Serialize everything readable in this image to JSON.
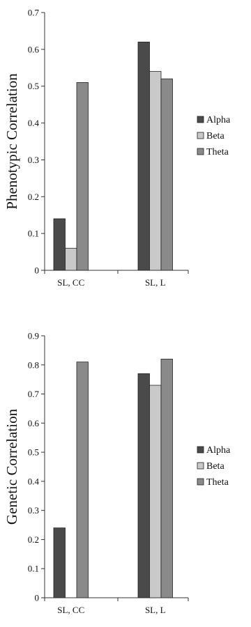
{
  "colors": {
    "Alpha": "#4a4a4a",
    "Beta": "#c9c9c9",
    "Theta": "#8a8a8a"
  },
  "chart_data": [
    {
      "type": "bar",
      "ylabel": "Phenotypic Correlation",
      "xlabel": "",
      "categories": [
        "SL, CC",
        "SL, L"
      ],
      "series": [
        {
          "name": "Alpha",
          "values": [
            0.14,
            0.62
          ]
        },
        {
          "name": "Beta",
          "values": [
            0.06,
            0.54
          ]
        },
        {
          "name": "Theta",
          "values": [
            0.51,
            0.52
          ]
        }
      ],
      "ylim": [
        0,
        0.7
      ],
      "yticks": [
        "0",
        "0.1",
        "0.2",
        "0.3",
        "0.4",
        "0.5",
        "0.6",
        "0.7"
      ],
      "grid": false,
      "legend": "right"
    },
    {
      "type": "bar",
      "ylabel": "Genetic Correlation",
      "xlabel": "",
      "categories": [
        "SL, CC",
        "SL, L"
      ],
      "series": [
        {
          "name": "Alpha",
          "values": [
            0.24,
            0.77
          ]
        },
        {
          "name": "Beta",
          "values": [
            0,
            0.73
          ]
        },
        {
          "name": "Theta",
          "values": [
            0.81,
            0.82
          ]
        }
      ],
      "ylim": [
        0,
        0.9
      ],
      "yticks": [
        "0",
        "0.1",
        "0.2",
        "0.3",
        "0.4",
        "0.5",
        "0.6",
        "0.7",
        "0.8",
        "0.9"
      ],
      "grid": false,
      "legend": "right"
    }
  ]
}
